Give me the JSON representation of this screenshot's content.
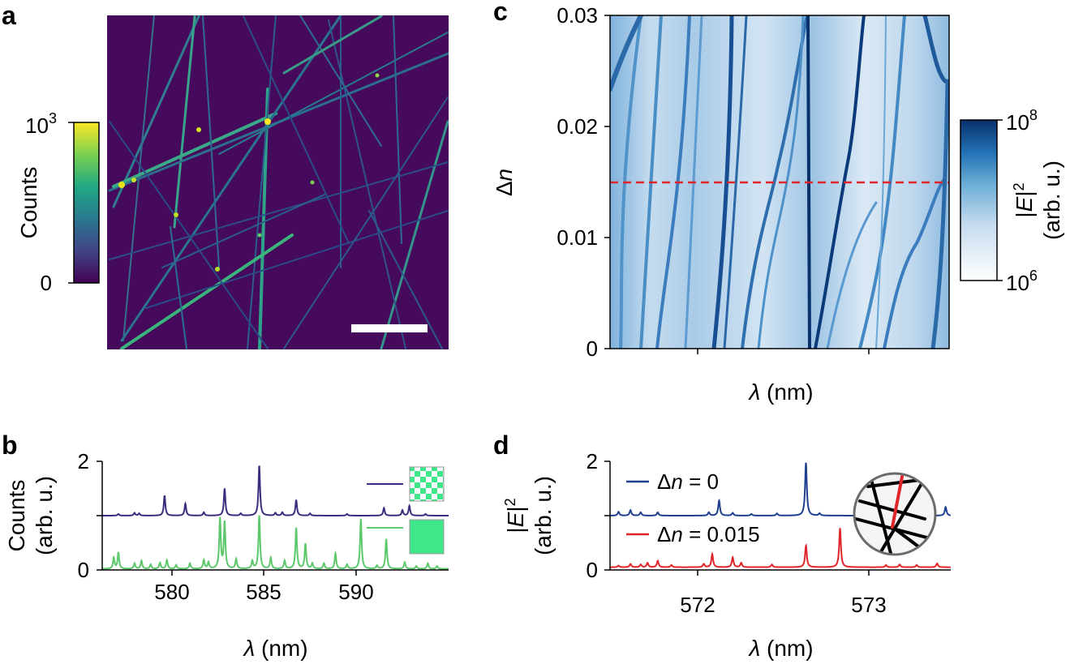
{
  "panels": {
    "a": {
      "label": "a",
      "colorbar": {
        "label": "Counts",
        "top_tick": "10",
        "top_tick_exp": "3",
        "bottom_tick": "0"
      },
      "colormap": "viridis",
      "background_color": "#450a5c"
    },
    "b": {
      "label": "b",
      "ylabel_line1": "Counts",
      "ylabel_line2": "(arb. u.)",
      "xlabel_symbol": "λ",
      "xlabel_unit": " (nm)",
      "yticks": [
        "0",
        "2"
      ],
      "xticks": [
        "580",
        "585",
        "590"
      ],
      "legend": [
        {
          "pattern": "checkerboard",
          "color": "#3b2d7d"
        },
        {
          "pattern": "full",
          "color": "#5cc86b"
        }
      ]
    },
    "c": {
      "label": "c",
      "ylabel_symbol": "Δ",
      "ylabel_var": "n",
      "xlabel_symbol": "λ",
      "xlabel_unit": " (nm)",
      "yticks": [
        "0",
        "0.01",
        "0.02",
        "0.03"
      ],
      "colorbar": {
        "label_var": "E",
        "label_exp": "2",
        "label_units": "(arb. u.)",
        "top_tick": "10",
        "top_tick_exp": "8",
        "bottom_tick": "10",
        "bottom_tick_exp": "6"
      },
      "dashed_line_color": "#e0262b"
    },
    "d": {
      "label": "d",
      "ylabel_var": "E",
      "ylabel_exp": "2",
      "ylabel_units": "(arb. u.)",
      "xlabel_symbol": "λ",
      "xlabel_unit": " (nm)",
      "yticks": [
        "0",
        "2"
      ],
      "xticks": [
        "572",
        "573"
      ],
      "legend": [
        {
          "prefix": "Δ",
          "var": "n",
          "value": " = 0",
          "color": "#1f3f8f"
        },
        {
          "prefix": "Δ",
          "var": "n",
          "value": " = 0.015",
          "color": "#e0262b"
        }
      ]
    }
  },
  "chart_data": [
    {
      "type": "line",
      "panel": "b",
      "xlabel": "λ (nm)",
      "ylabel": "Counts (arb. u.)",
      "xlim": [
        577.5,
        592.5
      ],
      "ylim": [
        0,
        2
      ],
      "series": [
        {
          "color": "#3b2d7d",
          "baseline": 1.0,
          "peaks": [
            [
              578.2,
              0.03
            ],
            [
              578.9,
              0.05
            ],
            [
              579.1,
              0.04
            ],
            [
              580.2,
              0.37
            ],
            [
              581.1,
              0.22
            ],
            [
              581.9,
              0.06
            ],
            [
              582.8,
              0.5
            ],
            [
              583.5,
              0.04
            ],
            [
              584.3,
              0.92
            ],
            [
              585.0,
              0.05
            ],
            [
              585.3,
              0.06
            ],
            [
              585.9,
              0.29
            ],
            [
              586.5,
              0.04
            ],
            [
              588.1,
              0.03
            ],
            [
              589.7,
              0.14
            ],
            [
              590.5,
              0.1
            ],
            [
              590.8,
              0.18
            ],
            [
              591.5,
              0.03
            ]
          ]
        },
        {
          "color": "#5cc86b",
          "baseline": 0.02,
          "peaks": [
            [
              578.0,
              0.2
            ],
            [
              578.2,
              0.3
            ],
            [
              578.9,
              0.1
            ],
            [
              579.2,
              0.15
            ],
            [
              579.6,
              0.08
            ],
            [
              580.0,
              0.11
            ],
            [
              580.3,
              0.16
            ],
            [
              580.7,
              0.07
            ],
            [
              581.3,
              0.1
            ],
            [
              581.9,
              0.16
            ],
            [
              582.1,
              0.12
            ],
            [
              582.6,
              0.92
            ],
            [
              582.8,
              0.85
            ],
            [
              583.3,
              0.18
            ],
            [
              584.0,
              0.14
            ],
            [
              584.3,
              0.98
            ],
            [
              584.8,
              0.2
            ],
            [
              585.4,
              0.15
            ],
            [
              585.9,
              0.75
            ],
            [
              586.3,
              0.46
            ],
            [
              586.6,
              0.1
            ],
            [
              587.1,
              0.1
            ],
            [
              587.6,
              0.28
            ],
            [
              588.1,
              0.08
            ],
            [
              588.7,
              0.92
            ],
            [
              589.4,
              0.06
            ],
            [
              589.8,
              0.55
            ],
            [
              590.6,
              0.12
            ],
            [
              591.1,
              0.05
            ],
            [
              591.6,
              0.1
            ],
            [
              592.0,
              0.05
            ]
          ]
        }
      ]
    },
    {
      "type": "heatmap",
      "panel": "c",
      "xlabel": "λ (nm)",
      "ylabel": "Δn",
      "ylim": [
        0,
        0.03
      ],
      "color_scale": "log",
      "clim": [
        1000000,
        100000000
      ],
      "colormap": "Blues",
      "dashed_line_y": 0.015
    },
    {
      "type": "line",
      "panel": "d",
      "xlabel": "λ (nm)",
      "ylabel": "|E|² (arb. u.)",
      "xlim": [
        571.5,
        573.5
      ],
      "ylim": [
        0,
        2
      ],
      "series": [
        {
          "name": "Δn = 0",
          "color": "#1f3f8f",
          "baseline": 1.0,
          "peaks": [
            [
              571.55,
              0.07
            ],
            [
              571.62,
              0.1
            ],
            [
              571.68,
              0.06
            ],
            [
              571.78,
              0.06
            ],
            [
              572.08,
              0.06
            ],
            [
              572.14,
              0.28
            ],
            [
              572.22,
              0.05
            ],
            [
              572.33,
              0.03
            ],
            [
              572.48,
              0.04
            ],
            [
              572.65,
              0.98
            ],
            [
              572.73,
              0.04
            ],
            [
              573.0,
              0.04
            ],
            [
              573.2,
              0.05
            ],
            [
              573.35,
              0.04
            ],
            [
              573.47,
              0.16
            ]
          ]
        },
        {
          "name": "Δn = 0.015",
          "color": "#e0262b",
          "baseline": 0.05,
          "peaks": [
            [
              571.55,
              0.03
            ],
            [
              571.62,
              0.06
            ],
            [
              571.68,
              0.05
            ],
            [
              571.72,
              0.08
            ],
            [
              571.78,
              0.12
            ],
            [
              571.86,
              0.04
            ],
            [
              572.05,
              0.06
            ],
            [
              572.1,
              0.24
            ],
            [
              572.22,
              0.18
            ],
            [
              572.27,
              0.08
            ],
            [
              572.45,
              0.05
            ],
            [
              572.65,
              0.4
            ],
            [
              572.85,
              0.72
            ],
            [
              573.12,
              0.04
            ],
            [
              573.2,
              0.05
            ],
            [
              573.3,
              0.04
            ],
            [
              573.42,
              0.07
            ]
          ]
        }
      ]
    }
  ]
}
